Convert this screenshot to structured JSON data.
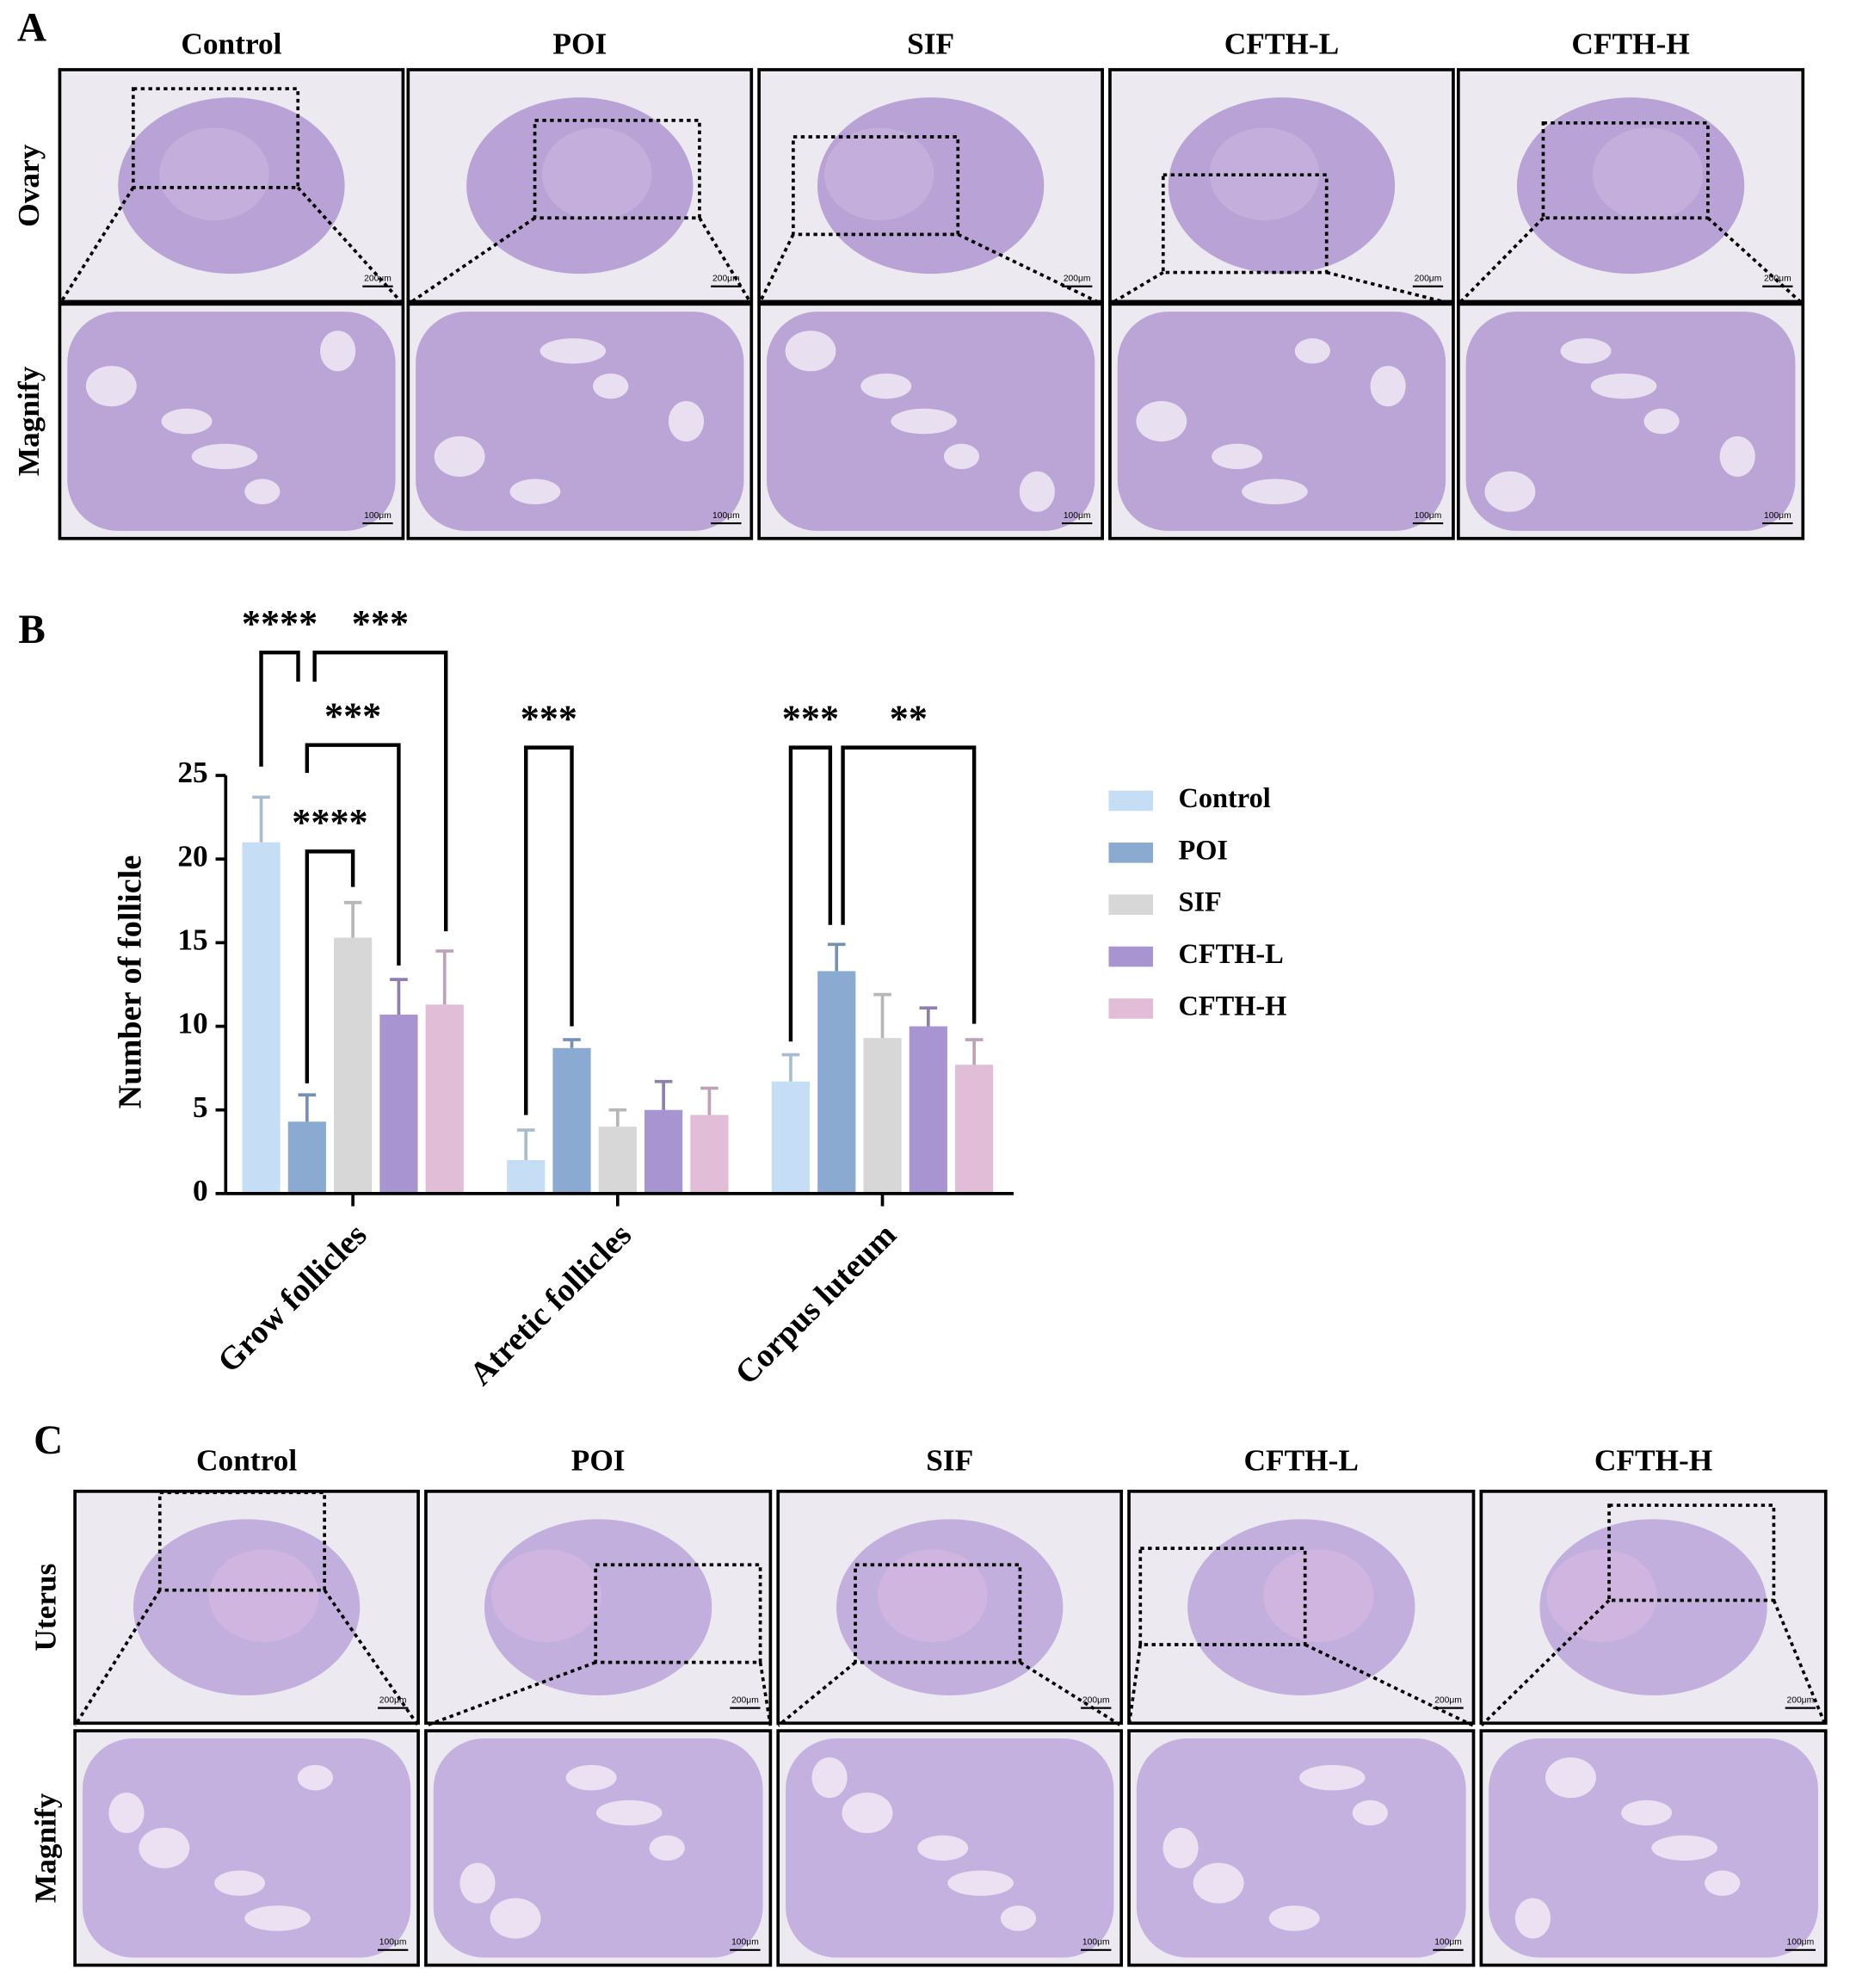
{
  "panel_a": {
    "label": "A",
    "columns": [
      "Control",
      "POI",
      "SIF",
      "CFTH-L",
      "CFTH-H"
    ],
    "rows": [
      "Ovary",
      "Magnify"
    ],
    "scale_bars": [
      "200μm",
      "100μm"
    ]
  },
  "chart_data": {
    "type": "bar",
    "panel_label": "B",
    "y_label": "Number of follicle",
    "categories": [
      "Grow follicles",
      "Atretic follicles",
      "Corpus luteum"
    ],
    "series": [
      {
        "name": "Control",
        "color": "#c6ddf6",
        "values": [
          21.0,
          2.0,
          6.7
        ],
        "errors": [
          2.7,
          1.8,
          1.6
        ]
      },
      {
        "name": "POI",
        "color": "#8aaad1",
        "values": [
          4.3,
          8.7,
          13.3
        ],
        "errors": [
          1.6,
          0.5,
          1.6
        ]
      },
      {
        "name": "SIF",
        "color": "#d7d7d7",
        "values": [
          15.3,
          4.0,
          9.3
        ],
        "errors": [
          2.1,
          1.0,
          2.6
        ]
      },
      {
        "name": "CFTH-L",
        "color": "#a894d1",
        "values": [
          10.7,
          5.0,
          10.0
        ],
        "errors": [
          2.1,
          1.7,
          1.1
        ]
      },
      {
        "name": "CFTH-H",
        "color": "#e1bdd7",
        "values": [
          11.3,
          4.7,
          7.7
        ],
        "errors": [
          3.2,
          1.6,
          1.5
        ]
      }
    ],
    "ylim": [
      0,
      25
    ],
    "yticks": [
      0,
      5,
      10,
      15,
      20,
      25
    ],
    "legend": "right",
    "significance": [
      {
        "label": "****",
        "category": 0,
        "between": [
          0,
          1
        ]
      },
      {
        "label": "***",
        "category": 0,
        "between": [
          1,
          4
        ]
      },
      {
        "label": "***",
        "category": 0,
        "between": [
          1,
          3
        ]
      },
      {
        "label": "****",
        "category": 0,
        "between": [
          1,
          2
        ]
      },
      {
        "label": "***",
        "category": 1,
        "between": [
          0,
          1
        ]
      },
      {
        "label": "***",
        "category": 2,
        "between": [
          0,
          1
        ]
      },
      {
        "label": "**",
        "category": 2,
        "between": [
          1,
          4
        ]
      }
    ]
  },
  "panel_c": {
    "label": "C",
    "columns": [
      "Control",
      "POI",
      "SIF",
      "CFTH-L",
      "CFTH-H"
    ],
    "rows": [
      "Uterus",
      "Magnify"
    ],
    "scale_bars": [
      "200μm",
      "100μm"
    ]
  }
}
